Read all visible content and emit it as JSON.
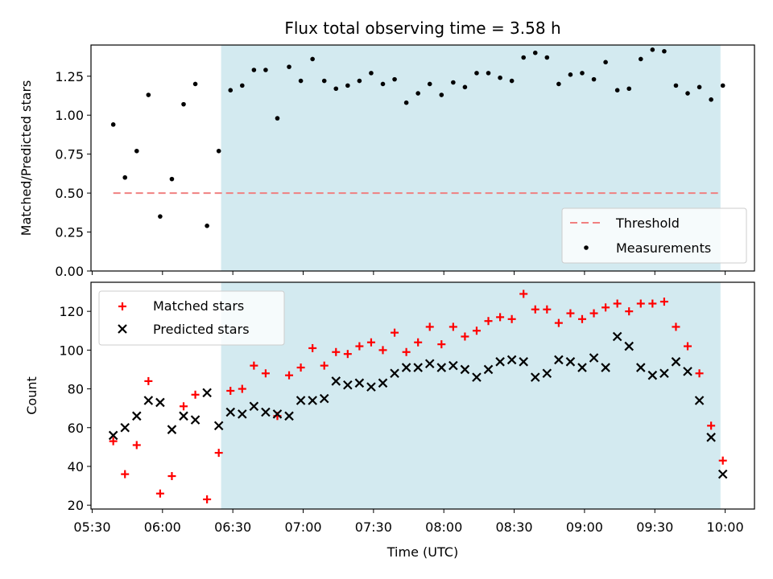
{
  "chart_data": [
    {
      "type": "scatter",
      "title": "Flux total observing time = 3.58 h",
      "ylabel": "Matched/Predicted stars",
      "xlabel": "",
      "xlim": [
        "05:30",
        "10:00"
      ],
      "ylim": [
        0,
        1.45
      ],
      "yticks": [
        "0.00",
        "0.25",
        "0.50",
        "0.75",
        "1.00",
        "1.25"
      ],
      "legend_position": "lower right",
      "shaded_interval": [
        "06:25",
        "09:58"
      ],
      "shade_color": "#d3eaf0",
      "threshold": {
        "name": "Threshold",
        "y": 0.5,
        "x": [
          "05:39",
          "09:58"
        ],
        "color": "#f08080",
        "style": "dashed"
      },
      "series": [
        {
          "name": "Measurements",
          "marker": "dot",
          "color": "#000000",
          "x": [
            "05:39",
            "05:44",
            "05:49",
            "05:54",
            "05:59",
            "06:04",
            "06:09",
            "06:14",
            "06:19",
            "06:24",
            "06:29",
            "06:34",
            "06:39",
            "06:44",
            "06:49",
            "06:54",
            "06:59",
            "07:04",
            "07:09",
            "07:14",
            "07:19",
            "07:24",
            "07:29",
            "07:34",
            "07:39",
            "07:44",
            "07:49",
            "07:54",
            "07:59",
            "08:04",
            "08:09",
            "08:14",
            "08:19",
            "08:24",
            "08:29",
            "08:34",
            "08:39",
            "08:44",
            "08:49",
            "08:54",
            "08:59",
            "09:04",
            "09:09",
            "09:14",
            "09:19",
            "09:24",
            "09:29",
            "09:34",
            "09:39",
            "09:44",
            "09:49",
            "09:54",
            "09:59"
          ],
          "y": [
            0.94,
            0.6,
            0.77,
            1.13,
            0.35,
            0.59,
            1.07,
            1.2,
            0.29,
            0.77,
            1.16,
            1.19,
            1.29,
            1.29,
            0.98,
            1.31,
            1.22,
            1.36,
            1.22,
            1.17,
            1.19,
            1.22,
            1.27,
            1.2,
            1.23,
            1.08,
            1.14,
            1.2,
            1.13,
            1.21,
            1.18,
            1.27,
            1.27,
            1.24,
            1.22,
            1.37,
            1.4,
            1.37,
            1.2,
            1.26,
            1.27,
            1.23,
            1.34,
            1.16,
            1.17,
            1.36,
            1.42,
            1.41,
            1.19,
            1.14,
            1.18,
            1.1,
            1.19
          ]
        }
      ]
    },
    {
      "type": "scatter",
      "title": "",
      "ylabel": "Count",
      "xlabel": "Time (UTC)",
      "xlim": [
        "05:30",
        "10:00"
      ],
      "ylim": [
        18,
        135
      ],
      "yticks": [
        "20",
        "40",
        "60",
        "80",
        "100",
        "120"
      ],
      "xticks": [
        "05:30",
        "06:00",
        "06:30",
        "07:00",
        "07:30",
        "08:00",
        "08:30",
        "09:00",
        "09:30",
        "10:00"
      ],
      "legend_position": "upper left",
      "shaded_interval": [
        "06:25",
        "09:58"
      ],
      "series": [
        {
          "name": "Matched stars",
          "marker": "plus",
          "color": "#ff0000",
          "x": [
            "05:39",
            "05:44",
            "05:49",
            "05:54",
            "05:59",
            "06:04",
            "06:09",
            "06:14",
            "06:19",
            "06:24",
            "06:29",
            "06:34",
            "06:39",
            "06:44",
            "06:49",
            "06:54",
            "06:59",
            "07:04",
            "07:09",
            "07:14",
            "07:19",
            "07:24",
            "07:29",
            "07:34",
            "07:39",
            "07:44",
            "07:49",
            "07:54",
            "07:59",
            "08:04",
            "08:09",
            "08:14",
            "08:19",
            "08:24",
            "08:29",
            "08:34",
            "08:39",
            "08:44",
            "08:49",
            "08:54",
            "08:59",
            "09:04",
            "09:09",
            "09:14",
            "09:19",
            "09:24",
            "09:29",
            "09:34",
            "09:39",
            "09:44",
            "09:49",
            "09:54",
            "09:59"
          ],
          "y": [
            53,
            36,
            51,
            84,
            26,
            35,
            71,
            77,
            23,
            47,
            79,
            80,
            92,
            88,
            66,
            87,
            91,
            101,
            92,
            99,
            98,
            102,
            104,
            100,
            109,
            99,
            104,
            112,
            103,
            112,
            107,
            110,
            115,
            117,
            116,
            129,
            121,
            121,
            114,
            119,
            116,
            119,
            122,
            124,
            120,
            124,
            124,
            125,
            112,
            102,
            88,
            61,
            43
          ]
        },
        {
          "name": "Predicted stars",
          "marker": "x",
          "color": "#000000",
          "x": [
            "05:39",
            "05:44",
            "05:49",
            "05:54",
            "05:59",
            "06:04",
            "06:09",
            "06:14",
            "06:19",
            "06:24",
            "06:29",
            "06:34",
            "06:39",
            "06:44",
            "06:49",
            "06:54",
            "06:59",
            "07:04",
            "07:09",
            "07:14",
            "07:19",
            "07:24",
            "07:29",
            "07:34",
            "07:39",
            "07:44",
            "07:49",
            "07:54",
            "07:59",
            "08:04",
            "08:09",
            "08:14",
            "08:19",
            "08:24",
            "08:29",
            "08:34",
            "08:39",
            "08:44",
            "08:49",
            "08:54",
            "08:59",
            "09:04",
            "09:09",
            "09:14",
            "09:19",
            "09:24",
            "09:29",
            "09:34",
            "09:39",
            "09:44",
            "09:49",
            "09:54",
            "09:59"
          ],
          "y": [
            56,
            60,
            66,
            74,
            73,
            59,
            66,
            64,
            78,
            61,
            68,
            67,
            71,
            68,
            67,
            66,
            74,
            74,
            75,
            84,
            82,
            83,
            81,
            83,
            88,
            91,
            91,
            93,
            91,
            92,
            90,
            86,
            90,
            94,
            95,
            94,
            86,
            88,
            95,
            94,
            91,
            96,
            91,
            107,
            102,
            91,
            87,
            88,
            94,
            89,
            74,
            55,
            36
          ]
        }
      ]
    }
  ]
}
